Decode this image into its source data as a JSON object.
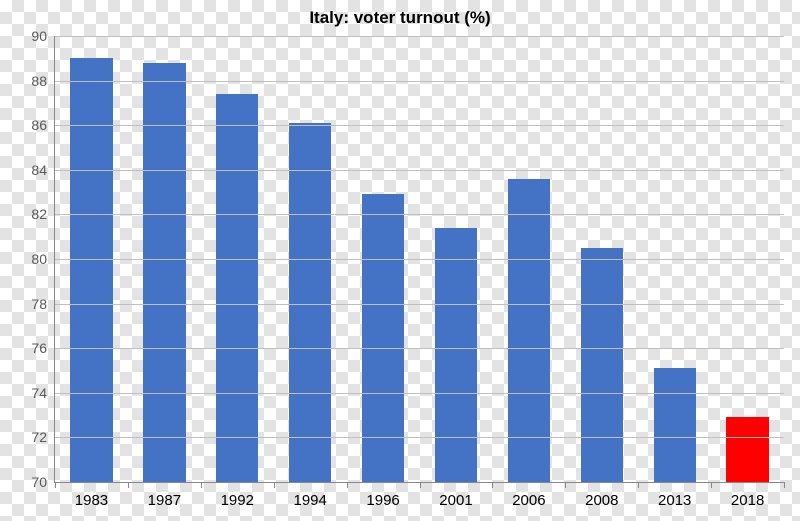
{
  "chart": {
    "type": "bar",
    "title": "Italy: voter turnout (%)",
    "title_fontsize": 17,
    "title_weight": "bold",
    "title_color": "#000000",
    "categories": [
      "1983",
      "1987",
      "1992",
      "1994",
      "1996",
      "2001",
      "2006",
      "2008",
      "2013",
      "2018"
    ],
    "values": [
      89.0,
      88.8,
      87.4,
      86.1,
      82.9,
      81.4,
      83.6,
      80.5,
      75.1,
      72.9
    ],
    "bar_colors": [
      "#4472c4",
      "#4472c4",
      "#4472c4",
      "#4472c4",
      "#4472c4",
      "#4472c4",
      "#4472c4",
      "#4472c4",
      "#4472c4",
      "#ff0000"
    ],
    "ylim": [
      70,
      90
    ],
    "ytick_step": 2,
    "yticks": [
      70,
      72,
      74,
      76,
      78,
      80,
      82,
      84,
      86,
      88,
      90
    ],
    "ylabel_fontsize": 14,
    "ylabel_color": "#595959",
    "xlabel_fontsize": 15,
    "xlabel_color": "#000000",
    "grid": true,
    "grid_color": "#bfbfbf",
    "axis_color": "#888888",
    "background_color": "transparent",
    "bar_width": 0.58
  }
}
